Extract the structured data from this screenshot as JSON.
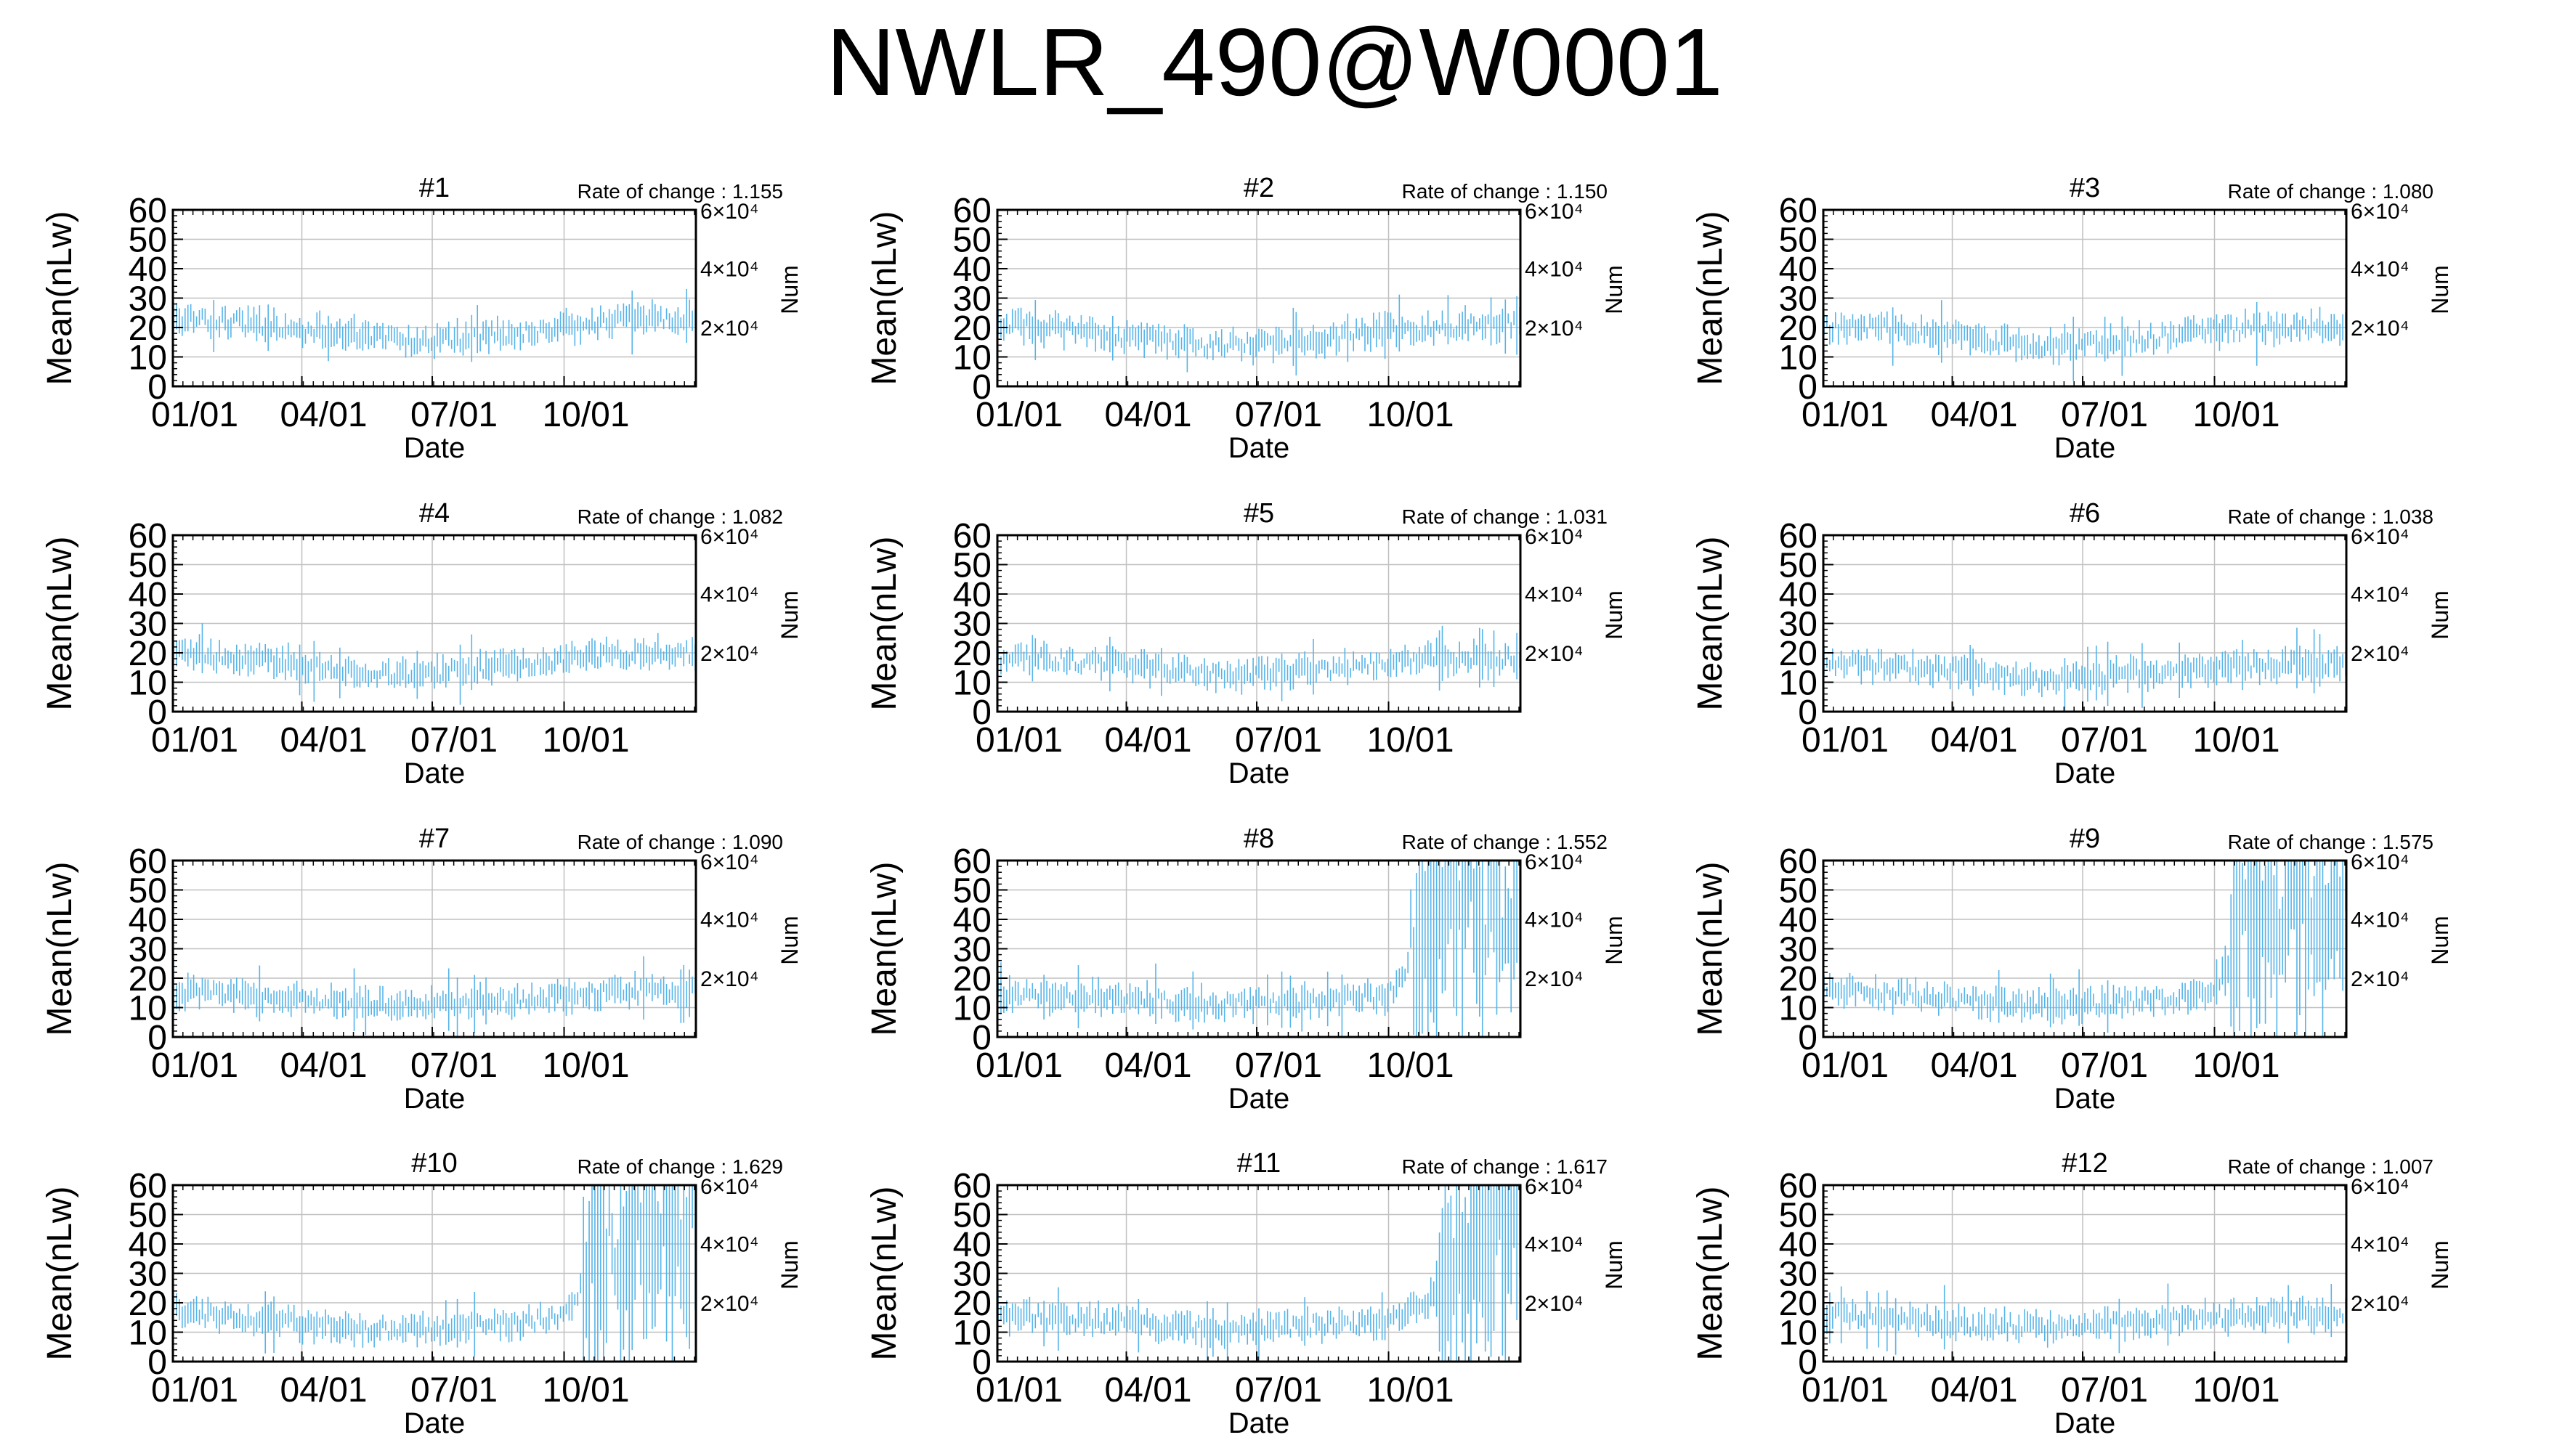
{
  "page": {
    "title": "NWLR_490@W0001"
  },
  "colors": {
    "series": "#56b4e9",
    "frame": "#000000",
    "grid": "#c0c0c0"
  },
  "chart_data": [
    {
      "type": "line",
      "title": "#1",
      "annotation": "Rate of change : 1.155",
      "xlabel": "Date",
      "ylabel": "Mean(nLw)",
      "y2label": "Num",
      "x_ticks": [
        "01/01",
        "04/01",
        "07/01",
        "10/01"
      ],
      "y_ticks": [
        "0",
        "10",
        "20",
        "30",
        "40",
        "50",
        "60"
      ],
      "y2_ticks": [
        "2×10⁴",
        "4×10⁴",
        "6×10⁴"
      ],
      "ylim": [
        0,
        60
      ],
      "grid": true,
      "error_bars": true,
      "series": [
        {
          "x": [
            "01/01",
            "02/01",
            "03/01",
            "04/01",
            "05/01",
            "06/01",
            "07/01",
            "08/01",
            "09/01",
            "10/01",
            "11/01",
            "12/01",
            "12/31"
          ],
          "values": [
            23,
            22,
            21,
            19,
            18,
            16,
            15,
            17,
            18,
            20,
            22,
            23,
            23
          ]
        }
      ]
    },
    {
      "type": "line",
      "title": "#2",
      "annotation": "Rate of change : 1.150",
      "xlabel": "Date",
      "ylabel": "Mean(nLw)",
      "y2label": "Num",
      "x_ticks": [
        "01/01",
        "04/01",
        "07/01",
        "10/01"
      ],
      "y_ticks": [
        "0",
        "10",
        "20",
        "30",
        "40",
        "50",
        "60"
      ],
      "y2_ticks": [
        "2×10⁴",
        "4×10⁴",
        "6×10⁴"
      ],
      "ylim": [
        0,
        60
      ],
      "grid": true,
      "error_bars": true,
      "series": [
        {
          "x": [
            "01/01",
            "02/01",
            "03/01",
            "04/01",
            "05/01",
            "06/01",
            "07/01",
            "08/01",
            "09/01",
            "10/01",
            "11/01",
            "12/01",
            "12/31"
          ],
          "values": [
            21,
            20,
            19,
            17,
            15,
            14,
            14,
            16,
            17,
            19,
            20,
            21,
            21
          ]
        }
      ]
    },
    {
      "type": "line",
      "title": "#3",
      "annotation": "Rate of change : 1.080",
      "xlabel": "Date",
      "ylabel": "Mean(nLw)",
      "y2label": "Num",
      "x_ticks": [
        "01/01",
        "04/01",
        "07/01",
        "10/01"
      ],
      "y_ticks": [
        "0",
        "10",
        "20",
        "30",
        "40",
        "50",
        "60"
      ],
      "y2_ticks": [
        "2×10⁴",
        "4×10⁴",
        "6×10⁴"
      ],
      "ylim": [
        0,
        60
      ],
      "grid": true,
      "error_bars": true,
      "series": [
        {
          "x": [
            "01/01",
            "02/01",
            "03/01",
            "04/01",
            "05/01",
            "06/01",
            "07/01",
            "08/01",
            "09/01",
            "10/01",
            "11/01",
            "12/01",
            "12/31"
          ],
          "values": [
            20,
            20,
            19,
            17,
            15,
            14,
            14,
            16,
            17,
            19,
            20,
            20,
            20
          ]
        }
      ]
    },
    {
      "type": "line",
      "title": "#4",
      "annotation": "Rate of change : 1.082",
      "xlabel": "Date",
      "ylabel": "Mean(nLw)",
      "y2label": "Num",
      "x_ticks": [
        "01/01",
        "04/01",
        "07/01",
        "10/01"
      ],
      "y_ticks": [
        "0",
        "10",
        "20",
        "30",
        "40",
        "50",
        "60"
      ],
      "y2_ticks": [
        "2×10⁴",
        "4×10⁴",
        "6×10⁴"
      ],
      "ylim": [
        0,
        60
      ],
      "grid": true,
      "error_bars": true,
      "series": [
        {
          "x": [
            "01/01",
            "02/01",
            "03/01",
            "04/01",
            "05/01",
            "06/01",
            "07/01",
            "08/01",
            "09/01",
            "10/01",
            "11/01",
            "12/01",
            "12/31"
          ],
          "values": [
            20,
            19,
            18,
            16,
            14,
            13,
            13,
            15,
            16,
            18,
            19,
            20,
            20
          ]
        }
      ]
    },
    {
      "type": "line",
      "title": "#5",
      "annotation": "Rate of change : 1.031",
      "xlabel": "Date",
      "ylabel": "Mean(nLw)",
      "y2label": "Num",
      "x_ticks": [
        "01/01",
        "04/01",
        "07/01",
        "10/01"
      ],
      "y_ticks": [
        "0",
        "10",
        "20",
        "30",
        "40",
        "50",
        "60"
      ],
      "y2_ticks": [
        "2×10⁴",
        "4×10⁴",
        "6×10⁴"
      ],
      "ylim": [
        0,
        60
      ],
      "grid": true,
      "error_bars": true,
      "series": [
        {
          "x": [
            "01/01",
            "02/01",
            "03/01",
            "04/01",
            "05/01",
            "06/01",
            "07/01",
            "08/01",
            "09/01",
            "10/01",
            "11/01",
            "12/01",
            "12/31"
          ],
          "values": [
            18,
            18,
            17,
            16,
            14,
            13,
            13,
            14,
            15,
            17,
            18,
            18,
            18
          ]
        }
      ]
    },
    {
      "type": "line",
      "title": "#6",
      "annotation": "Rate of change : 1.038",
      "xlabel": "Date",
      "ylabel": "Mean(nLw)",
      "y2label": "Num",
      "x_ticks": [
        "01/01",
        "04/01",
        "07/01",
        "10/01"
      ],
      "y_ticks": [
        "0",
        "10",
        "20",
        "30",
        "40",
        "50",
        "60"
      ],
      "y2_ticks": [
        "2×10⁴",
        "4×10⁴",
        "6×10⁴"
      ],
      "ylim": [
        0,
        60
      ],
      "grid": true,
      "error_bars": true,
      "series": [
        {
          "x": [
            "01/01",
            "02/01",
            "03/01",
            "04/01",
            "05/01",
            "06/01",
            "07/01",
            "08/01",
            "09/01",
            "10/01",
            "11/01",
            "12/01",
            "12/31"
          ],
          "values": [
            16,
            16,
            15,
            14,
            12,
            11,
            11,
            13,
            14,
            15,
            16,
            16,
            16
          ]
        }
      ]
    },
    {
      "type": "line",
      "title": "#7",
      "annotation": "Rate of change : 1.090",
      "xlabel": "Date",
      "ylabel": "Mean(nLw)",
      "y2label": "Num",
      "x_ticks": [
        "01/01",
        "04/01",
        "07/01",
        "10/01"
      ],
      "y_ticks": [
        "0",
        "10",
        "20",
        "30",
        "40",
        "50",
        "60"
      ],
      "y2_ticks": [
        "2×10⁴",
        "4×10⁴",
        "6×10⁴"
      ],
      "ylim": [
        0,
        60
      ],
      "grid": true,
      "error_bars": true,
      "series": [
        {
          "x": [
            "01/01",
            "02/01",
            "03/01",
            "04/01",
            "05/01",
            "06/01",
            "07/01",
            "08/01",
            "09/01",
            "10/01",
            "11/01",
            "12/01",
            "12/31"
          ],
          "values": [
            15,
            15,
            14,
            13,
            12,
            11,
            11,
            12,
            13,
            14,
            15,
            16,
            16
          ]
        }
      ]
    },
    {
      "type": "line",
      "title": "#8",
      "annotation": "Rate of change : 1.552",
      "xlabel": "Date",
      "ylabel": "Mean(nLw)",
      "y2label": "Num",
      "x_ticks": [
        "01/01",
        "04/01",
        "07/01",
        "10/01"
      ],
      "y_ticks": [
        "0",
        "10",
        "20",
        "30",
        "40",
        "50",
        "60"
      ],
      "y2_ticks": [
        "2×10⁴",
        "4×10⁴",
        "6×10⁴"
      ],
      "ylim": [
        0,
        60
      ],
      "grid": true,
      "error_bars": true,
      "series": [
        {
          "x": [
            "01/01",
            "02/01",
            "03/01",
            "04/01",
            "05/01",
            "06/01",
            "07/01",
            "08/01",
            "09/01",
            "10/01",
            "11/01",
            "12/01",
            "12/31"
          ],
          "values": [
            15,
            14,
            14,
            13,
            12,
            11,
            11,
            12,
            13,
            14,
            40,
            45,
            40
          ]
        }
      ]
    },
    {
      "type": "line",
      "title": "#9",
      "annotation": "Rate of change : 1.575",
      "xlabel": "Date",
      "ylabel": "Mean(nLw)",
      "y2label": "Num",
      "x_ticks": [
        "01/01",
        "04/01",
        "07/01",
        "10/01"
      ],
      "y_ticks": [
        "0",
        "10",
        "20",
        "30",
        "40",
        "50",
        "60"
      ],
      "y2_ticks": [
        "2×10⁴",
        "4×10⁴",
        "6×10⁴"
      ],
      "ylim": [
        0,
        60
      ],
      "grid": true,
      "error_bars": true,
      "series": [
        {
          "x": [
            "01/01",
            "02/01",
            "03/01",
            "04/01",
            "05/01",
            "06/01",
            "07/01",
            "08/01",
            "09/01",
            "10/01",
            "11/01",
            "12/01",
            "12/31"
          ],
          "values": [
            16,
            15,
            14,
            13,
            12,
            11,
            11,
            12,
            13,
            16,
            45,
            48,
            45
          ]
        }
      ]
    },
    {
      "type": "line",
      "title": "#10",
      "annotation": "Rate of change : 1.629",
      "xlabel": "Date",
      "ylabel": "Mean(nLw)",
      "y2label": "Num",
      "x_ticks": [
        "01/01",
        "04/01",
        "07/01",
        "10/01"
      ],
      "y_ticks": [
        "0",
        "10",
        "20",
        "30",
        "40",
        "50",
        "60"
      ],
      "y2_ticks": [
        "2×10⁴",
        "4×10⁴",
        "6×10⁴"
      ],
      "ylim": [
        0,
        60
      ],
      "grid": true,
      "error_bars": true,
      "series": [
        {
          "x": [
            "01/01",
            "02/01",
            "03/01",
            "04/01",
            "05/01",
            "06/01",
            "07/01",
            "08/01",
            "09/01",
            "10/01",
            "11/01",
            "12/01",
            "12/31"
          ],
          "values": [
            17,
            15,
            14,
            13,
            12,
            11,
            11,
            12,
            13,
            16,
            40,
            50,
            45
          ]
        }
      ]
    },
    {
      "type": "line",
      "title": "#11",
      "annotation": "Rate of change : 1.617",
      "xlabel": "Date",
      "ylabel": "Mean(nLw)",
      "y2label": "Num",
      "x_ticks": [
        "01/01",
        "04/01",
        "07/01",
        "10/01"
      ],
      "y_ticks": [
        "0",
        "10",
        "20",
        "30",
        "40",
        "50",
        "60"
      ],
      "y2_ticks": [
        "2×10⁴",
        "4×10⁴",
        "6×10⁴"
      ],
      "ylim": [
        0,
        60
      ],
      "grid": true,
      "error_bars": true,
      "series": [
        {
          "x": [
            "01/01",
            "02/01",
            "03/01",
            "04/01",
            "05/01",
            "06/01",
            "07/01",
            "08/01",
            "09/01",
            "10/01",
            "11/01",
            "12/01",
            "12/31"
          ],
          "values": [
            16,
            15,
            14,
            13,
            12,
            11,
            11,
            12,
            13,
            14,
            22,
            45,
            50
          ]
        }
      ]
    },
    {
      "type": "line",
      "title": "#12",
      "annotation": "Rate of change : 1.007",
      "xlabel": "Date",
      "ylabel": "Mean(nLw)",
      "y2label": "Num",
      "x_ticks": [
        "01/01",
        "04/01",
        "07/01",
        "10/01"
      ],
      "y_ticks": [
        "0",
        "10",
        "20",
        "30",
        "40",
        "50",
        "60"
      ],
      "y2_ticks": [
        "2×10⁴",
        "4×10⁴",
        "6×10⁴"
      ],
      "ylim": [
        0,
        60
      ],
      "grid": true,
      "error_bars": true,
      "series": [
        {
          "x": [
            "01/01",
            "02/01",
            "03/01",
            "04/01",
            "05/01",
            "06/01",
            "07/01",
            "08/01",
            "09/01",
            "10/01",
            "11/01",
            "12/01",
            "12/31"
          ],
          "values": [
            16,
            15,
            14,
            13,
            12,
            12,
            12,
            13,
            14,
            15,
            16,
            16,
            16
          ]
        }
      ]
    }
  ]
}
